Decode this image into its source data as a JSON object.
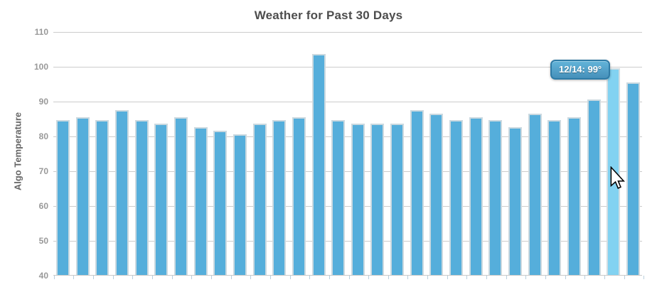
{
  "chart": {
    "title": "Weather for Past 30 Days",
    "y_axis_title": "Algo Temperature"
  },
  "tooltip": {
    "text": "12/14: 99°",
    "date": "12/14",
    "value": 99
  },
  "chart_data": {
    "type": "bar",
    "title": "Weather for Past 30 Days",
    "xlabel": "",
    "ylabel": "Algo Temperature",
    "ylim": [
      40,
      110
    ],
    "yticks": [
      40,
      50,
      60,
      70,
      80,
      90,
      100,
      110
    ],
    "grid": true,
    "legend_position": "none",
    "values": [
      84,
      85,
      84,
      87,
      84,
      83,
      85,
      82,
      81,
      80,
      83,
      84,
      85,
      103,
      84,
      83,
      83,
      83,
      87,
      86,
      84,
      85,
      84,
      82,
      86,
      84,
      85,
      90,
      99,
      95
    ],
    "highlighted_index": 28,
    "highlighted_label": "12/14",
    "highlighted_value": 99
  },
  "colors": {
    "bar": "#55aedb",
    "bar_highlight": "#82d2f1",
    "gridline": "#cccccc",
    "axis_line": "#c9c9c9",
    "tick": "#b9cfdd",
    "title_text": "#4d4d4d",
    "axis_label_text": "#999999",
    "y_title_text": "#666666",
    "tooltip_border": "#2f7ba6",
    "tooltip_bg_top": "#63b4d9",
    "tooltip_bg_bottom": "#4690ba",
    "tooltip_text": "#ffffff"
  }
}
